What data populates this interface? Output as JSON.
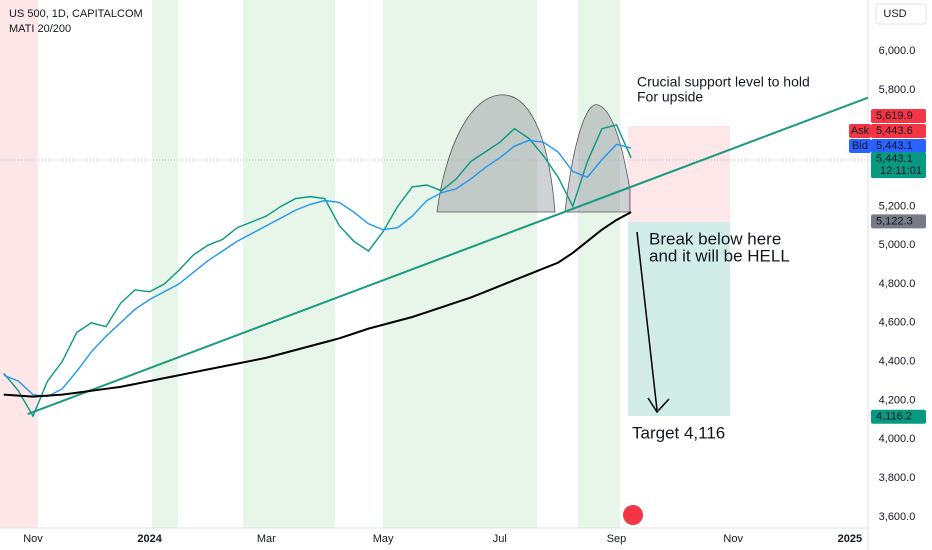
{
  "chart_data": {
    "type": "line",
    "title": "US 500, 1D, CAPITALCOM",
    "subtitle": "MATI 20/200",
    "currency": "USD",
    "x": [
      -0.5,
      -0.25,
      0,
      0.25,
      0.5,
      0.75,
      1,
      1.25,
      1.5,
      1.75,
      2,
      2.25,
      2.5,
      2.75,
      3,
      3.25,
      3.5,
      3.75,
      4,
      4.25,
      4.5,
      4.75,
      5,
      5.25,
      5.5,
      5.75,
      6,
      6.25,
      6.5,
      6.75,
      7,
      7.25,
      7.5,
      7.75,
      8,
      8.25,
      8.5,
      8.75,
      9,
      9.25,
      9.5,
      9.75,
      10,
      10.25
    ],
    "series": [
      {
        "color": "#089981",
        "values": [
          4340,
          4250,
          4120,
          4300,
          4400,
          4550,
          4600,
          4580,
          4700,
          4770,
          4760,
          4800,
          4870,
          4950,
          5000,
          5030,
          5090,
          5120,
          5150,
          5200,
          5240,
          5250,
          5240,
          5100,
          5020,
          4970,
          5070,
          5200,
          5300,
          5310,
          5280,
          5340,
          5430,
          5480,
          5530,
          5600,
          5550,
          5460,
          5350,
          5200,
          5430,
          5600,
          5620,
          5450
        ]
      },
      {
        "color": "#2196f3",
        "values": [
          4330,
          4300,
          4230,
          4220,
          4260,
          4350,
          4450,
          4530,
          4600,
          4670,
          4720,
          4760,
          4800,
          4860,
          4920,
          4970,
          5020,
          5060,
          5100,
          5140,
          5180,
          5210,
          5230,
          5220,
          5170,
          5110,
          5080,
          5090,
          5150,
          5230,
          5270,
          5290,
          5340,
          5400,
          5450,
          5510,
          5540,
          5530,
          5480,
          5380,
          5350,
          5440,
          5520,
          5500
        ]
      },
      {
        "color": "#000000",
        "values": [
          4230,
          4225,
          4220,
          4225,
          4230,
          4240,
          4250,
          4260,
          4270,
          4285,
          4300,
          4315,
          4330,
          4345,
          4360,
          4375,
          4390,
          4405,
          4420,
          4440,
          4460,
          4480,
          4500,
          4520,
          4545,
          4570,
          4590,
          4610,
          4630,
          4655,
          4680,
          4705,
          4730,
          4760,
          4790,
          4820,
          4850,
          4880,
          4910,
          4960,
          5020,
          5080,
          5130,
          5170
        ]
      }
    ],
    "trendline": {
      "color": "#1a9a80",
      "x": [
        -0.09,
        14.31
      ],
      "values": [
        4130,
        5760
      ]
    },
    "xlim": [
      -0.565,
      14.31
    ],
    "xticks": [
      {
        "value": 0,
        "label": "Nov"
      },
      {
        "value": 2,
        "label": "2024"
      },
      {
        "value": 4,
        "label": "Mar"
      },
      {
        "value": 6,
        "label": "May"
      },
      {
        "value": 8,
        "label": "Jul"
      },
      {
        "value": 10,
        "label": "Sep"
      },
      {
        "value": 12,
        "label": "Nov"
      },
      {
        "value": 14,
        "label": "2025"
      }
    ],
    "ylim": [
      3543,
      6263
    ],
    "yticks": [
      {
        "value": 3600,
        "label": "3,600.0"
      },
      {
        "value": 3800,
        "label": "3,800.0"
      },
      {
        "value": 4000,
        "label": "4,000.0"
      },
      {
        "value": 4200,
        "label": "4,200.0"
      },
      {
        "value": 4400,
        "label": "4,400.0"
      },
      {
        "value": 4600,
        "label": "4,600.0"
      },
      {
        "value": 4800,
        "label": "4,800.0"
      },
      {
        "value": 5000,
        "label": "5,000.0"
      },
      {
        "value": 5200,
        "label": "5,200.0"
      },
      {
        "value": 5800,
        "label": "5,800.0"
      },
      {
        "value": 6000,
        "label": "6,000.0"
      }
    ],
    "price_labels": [
      {
        "value": 5619.9,
        "label": "5,619.9",
        "color": "#f23645"
      },
      {
        "value": 5443.6,
        "label": "5,443.6",
        "tag": "Ask",
        "color": "#f23645"
      },
      {
        "value": 5443.1,
        "label": "5,443.1",
        "tag": "Bid",
        "color": "#2962ff"
      },
      {
        "value": 5443.1,
        "label": "5,443.1",
        "time": "12:11:01",
        "color": "#089981"
      },
      {
        "value": 5122.3,
        "label": "5,122.3",
        "color": "#787b86"
      },
      {
        "value": 4116.2,
        "label": "4,116.2",
        "color": "#089981"
      }
    ],
    "annotations": [
      "Crucial support level to hold",
      "For upside",
      "Break below here",
      "and it will be HELL",
      "Target 4,116"
    ]
  }
}
